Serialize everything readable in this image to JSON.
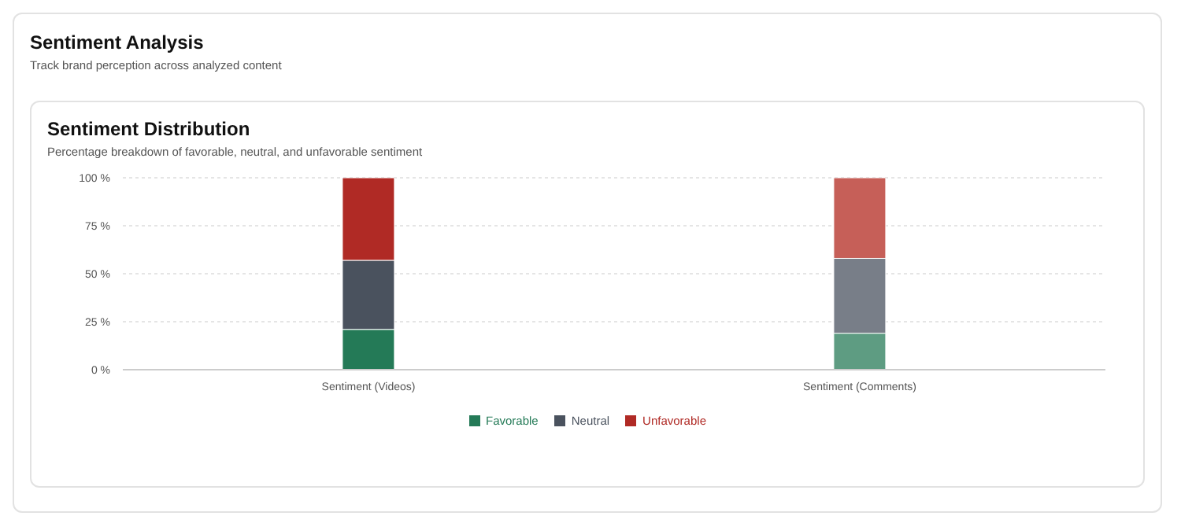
{
  "chart_data": {
    "type": "bar",
    "title": "Sentiment Analysis",
    "subtitle": "Track brand perception across analyzed content",
    "annotations": [
      "Sentiment Distribution",
      "Percentage breakdown of favorable, neutral, and unfavorable sentiment"
    ],
    "categories": [
      "Sentiment (Videos)",
      "Sentiment (Comments)"
    ],
    "series": [
      {
        "name": "Favorable",
        "color": "#247a57",
        "colors": [
          "#247a57",
          "#5e9c82"
        ],
        "values": [
          21,
          19
        ]
      },
      {
        "name": "Neutral",
        "color": "#4a525e",
        "colors": [
          "#4a525e",
          "#787e88"
        ],
        "values": [
          36,
          39
        ]
      },
      {
        "name": "Unfavorable",
        "color": "#b02a25",
        "colors": [
          "#b02a25",
          "#c65f58"
        ],
        "values": [
          43,
          42
        ]
      }
    ],
    "stacked": true,
    "ylim": [
      0,
      100
    ],
    "yticks": [
      {
        "value": 0,
        "label": "0 %"
      },
      {
        "value": 25,
        "label": "25 %"
      },
      {
        "value": 50,
        "label": "50 %"
      },
      {
        "value": 75,
        "label": "75 %"
      },
      {
        "value": 100,
        "label": "100 %"
      }
    ],
    "grid": "y",
    "legend": "bottom"
  }
}
